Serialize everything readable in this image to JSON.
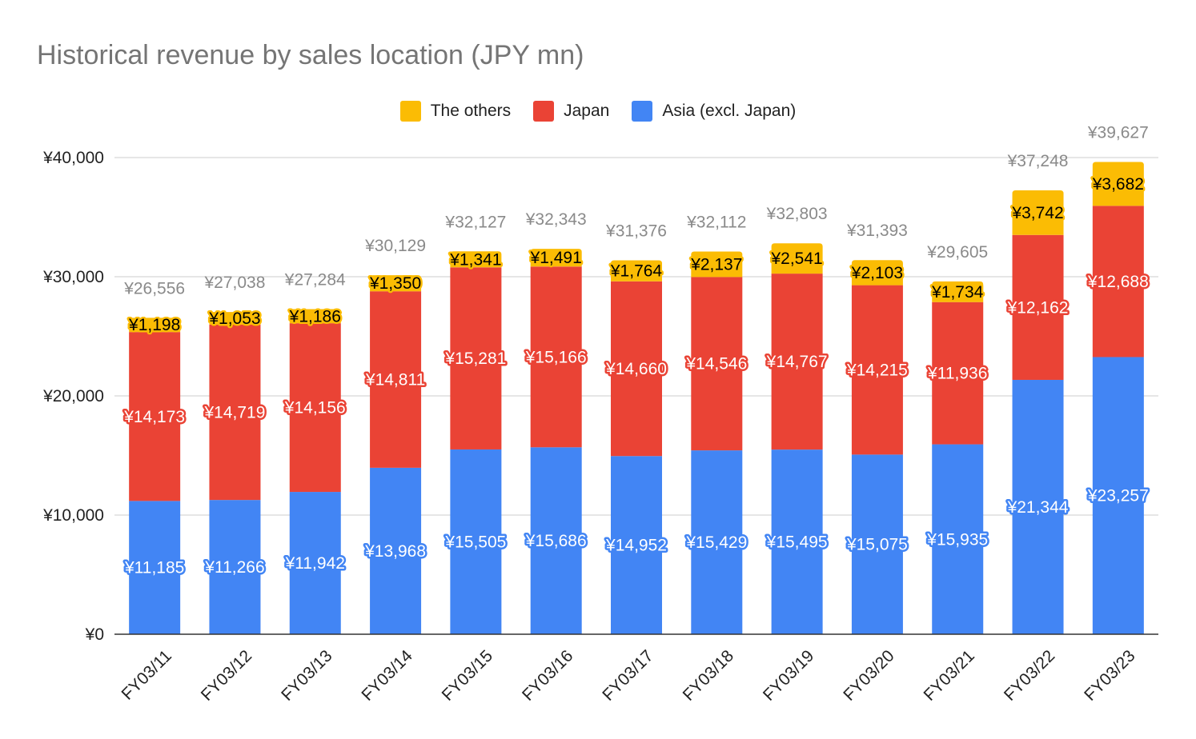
{
  "chart_data": {
    "type": "bar",
    "stacked": true,
    "title": "Historical revenue by sales location (JPY mn)",
    "xlabel": "",
    "ylabel": "",
    "ylim": [
      0,
      40000
    ],
    "yticks": [
      0,
      10000,
      20000,
      30000,
      40000
    ],
    "ytick_labels": [
      "¥0",
      "¥10,000",
      "¥20,000",
      "¥30,000",
      "¥40,000"
    ],
    "grid": true,
    "legend_position": "top-center",
    "categories": [
      "FY03/11",
      "FY03/12",
      "FY03/13",
      "FY03/14",
      "FY03/15",
      "FY03/16",
      "FY03/17",
      "FY03/18",
      "FY03/19",
      "FY03/20",
      "FY03/21",
      "FY03/22",
      "FY03/23"
    ],
    "legend": [
      {
        "name": "The others",
        "color": "#fbbc04"
      },
      {
        "name": "Japan",
        "color": "#ea4335"
      },
      {
        "name": "Asia (excl. Japan)",
        "color": "#4285f4"
      }
    ],
    "series": [
      {
        "name": "Asia (excl. Japan)",
        "color": "#4285f4",
        "label_color": "#ffffff",
        "values": [
          11185,
          11266,
          11942,
          13968,
          15505,
          15686,
          14952,
          15429,
          15495,
          15075,
          15935,
          21344,
          23257
        ],
        "labels": [
          "¥11,185",
          "¥11,266",
          "¥11,942",
          "¥13,968",
          "¥15,505",
          "¥15,686",
          "¥14,952",
          "¥15,429",
          "¥15,495",
          "¥15,075",
          "¥15,935",
          "¥21,344",
          "¥23,257"
        ]
      },
      {
        "name": "Japan",
        "color": "#ea4335",
        "label_color": "#ffffff",
        "values": [
          14173,
          14719,
          14156,
          14811,
          15281,
          15166,
          14660,
          14546,
          14767,
          14215,
          11936,
          12162,
          12688
        ],
        "labels": [
          "¥14,173",
          "¥14,719",
          "¥14,156",
          "¥14,811",
          "¥15,281",
          "¥15,166",
          "¥14,660",
          "¥14,546",
          "¥14,767",
          "¥14,215",
          "¥11,936",
          "¥12,162",
          "¥12,688"
        ]
      },
      {
        "name": "The others",
        "color": "#fbbc04",
        "label_color": "#000000",
        "values": [
          1198,
          1053,
          1186,
          1350,
          1341,
          1491,
          1764,
          2137,
          2541,
          2103,
          1734,
          3742,
          3682
        ],
        "labels": [
          "¥1,198",
          "¥1,053",
          "¥1,186",
          "¥1,350",
          "¥1,341",
          "¥1,491",
          "¥1,764",
          "¥2,137",
          "¥2,541",
          "¥2,103",
          "¥1,734",
          "¥3,742",
          "¥3,682"
        ]
      }
    ],
    "totals": [
      26556,
      27038,
      27284,
      30129,
      32127,
      32343,
      31376,
      32112,
      32803,
      31393,
      29605,
      37248,
      39627
    ],
    "total_labels": [
      "¥26,556",
      "¥27,038",
      "¥27,284",
      "¥30,129",
      "¥32,127",
      "¥32,343",
      "¥31,376",
      "¥32,112",
      "¥32,803",
      "¥31,393",
      "¥29,605",
      "¥37,248",
      "¥39,627"
    ]
  }
}
